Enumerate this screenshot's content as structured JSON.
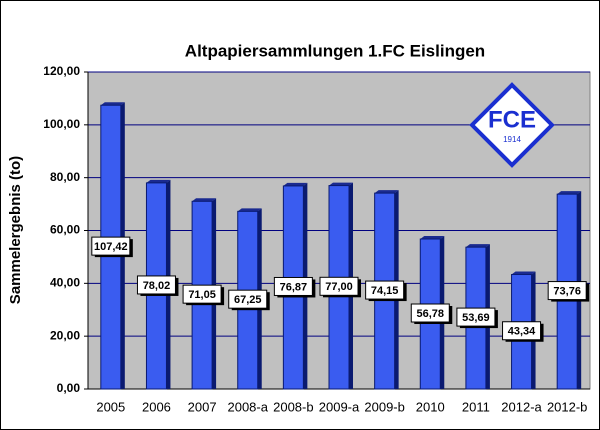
{
  "chart_data": {
    "type": "bar",
    "title": "Altpapiersammlungen 1.FC Eislingen",
    "y_label": "Sammelergebnis (to)",
    "categories": [
      "2005",
      "2006",
      "2007",
      "2008-a",
      "2008-b",
      "2009-a",
      "2009-b",
      "2010",
      "2011",
      "2012-a",
      "2012-b"
    ],
    "values": [
      107.42,
      78.02,
      71.05,
      67.25,
      76.87,
      77.0,
      74.15,
      56.78,
      53.69,
      43.34,
      73.76
    ],
    "value_labels": [
      "107,42",
      "78,02",
      "71,05",
      "67,25",
      "76,87",
      "77,00",
      "74,15",
      "56,78",
      "53,69",
      "43,34",
      "73,76"
    ],
    "color": "#3a5cf0",
    "ylim": [
      0,
      120
    ],
    "yticks": [
      {
        "value": 0,
        "label": "0,00"
      },
      {
        "value": 20,
        "label": "20,00"
      },
      {
        "value": 40,
        "label": "40,00"
      },
      {
        "value": 60,
        "label": "60,00"
      },
      {
        "value": 80,
        "label": "80,00"
      },
      {
        "value": 100,
        "label": "100,00"
      },
      {
        "value": 120,
        "label": "120,00"
      }
    ],
    "grid": true,
    "logo": {
      "text": "FCE",
      "year": "1914"
    }
  }
}
